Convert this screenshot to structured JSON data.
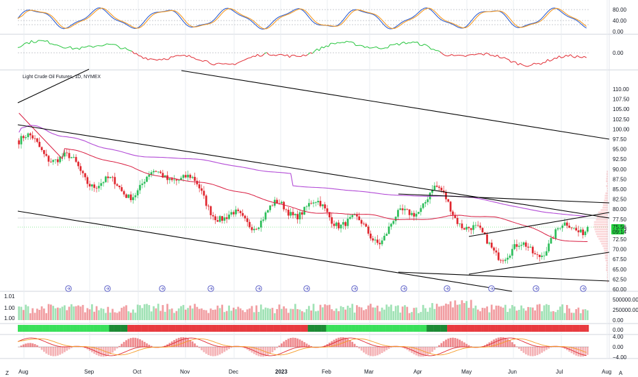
{
  "title": "Light Crude Oil Futures, 1D, NYMEX",
  "colors": {
    "up": "#2dbe5a",
    "down": "#e0262e",
    "ma_fast": "#d81b3f",
    "ma_slow": "#b24ad6",
    "stoch_k": "#2f5fd0",
    "stoch_d": "#f59a23",
    "grid": "#e9ecf1",
    "trend": "#000000",
    "price_badge": "#26d63f"
  },
  "x_axis": {
    "labels": [
      "Aug",
      "Sep",
      "Oct",
      "Nov",
      "Dec",
      "2023",
      "Feb",
      "Mar",
      "Apr",
      "May",
      "Jun",
      "Jul",
      "Aug"
    ],
    "bold": [
      "2023"
    ],
    "corner_left": "Z",
    "corner_right": "A"
  },
  "stoch_panel": {
    "ticks": [
      "80.00",
      "40.00",
      "0.00"
    ]
  },
  "osc_panel": {
    "ticks": [
      "0.00"
    ]
  },
  "price_panel": {
    "ticks": [
      "110.00",
      "107.50",
      "105.00",
      "102.50",
      "100.00",
      "97.50",
      "95.00",
      "92.50",
      "90.00",
      "87.50",
      "85.00",
      "82.50",
      "80.00",
      "77.50",
      "75.00",
      "72.50",
      "70.00",
      "67.50",
      "65.00",
      "62.50",
      "60.00"
    ],
    "ylim": [
      60,
      112
    ],
    "last_price": "75.56",
    "countdown": "09:14"
  },
  "volume_panel": {
    "ticks": [
      "500000.00",
      "250000.00",
      "0.00"
    ],
    "left_ticks": [
      "1.01",
      "1.00",
      "1.00"
    ]
  },
  "macd_panel": {
    "ticks": [
      "4.00",
      "0.00",
      "−4.00"
    ],
    "strip_tick": "0.00"
  },
  "chart_data": {
    "type": "candlestick",
    "title": "Light Crude Oil Futures, 1D, NYMEX",
    "x": [
      "2022-08-01",
      "2022-09-01",
      "2022-10-01",
      "2022-11-01",
      "2022-12-01",
      "2023-01-01",
      "2023-02-01",
      "2023-03-01",
      "2023-04-01",
      "2023-05-01",
      "2023-06-01",
      "2023-07-01"
    ],
    "close_approx": [
      94.0,
      88.0,
      88.5,
      84.0,
      77.0,
      79.0,
      77.0,
      72.5,
      80.0,
      71.0,
      70.0,
      76.0
    ],
    "series": [
      {
        "name": "",
        "values": [
          97,
          90,
          86,
          88,
          78,
          80,
          78,
          75,
          83,
          72,
          70,
          75.56
        ]
      }
    ],
    "ylim": [
      60,
      112
    ],
    "last_price": 75.56
  }
}
